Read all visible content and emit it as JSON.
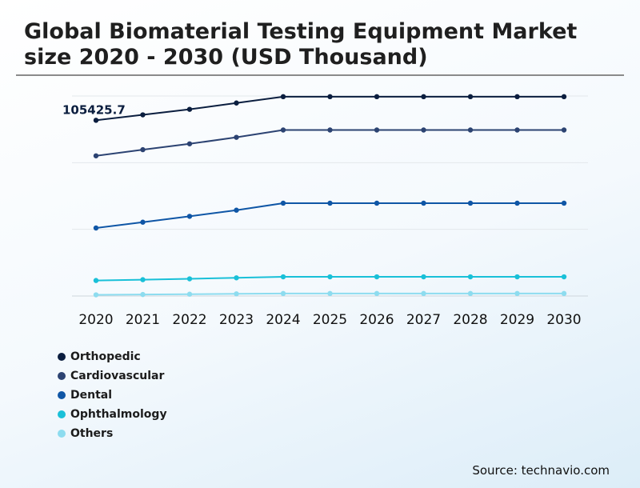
{
  "title": "Global Biomaterial Testing Equipment Market size 2020 - 2030 (USD Thousand)",
  "source": "Source: technavio.com",
  "chart_data": {
    "type": "line",
    "x": [
      "2020",
      "2021",
      "2022",
      "2023",
      "2024",
      "2025",
      "2026",
      "2027",
      "2028",
      "2029",
      "2030"
    ],
    "ylim": [
      0,
      120000
    ],
    "grid": true,
    "legend": "bottom-left",
    "annotation": "105425.7",
    "series": [
      {
        "name": "Orthopedic",
        "color": "#0b1e3f",
        "values": [
          105425.7,
          108700,
          112000,
          115800,
          119600,
          119600,
          119600,
          119600,
          119600,
          119600,
          119600
        ]
      },
      {
        "name": "Cardiovascular",
        "color": "#2c4372",
        "values": [
          84100,
          87800,
          91300,
          95200,
          99600,
          99600,
          99600,
          99600,
          99600,
          99600,
          99600
        ]
      },
      {
        "name": "Dental",
        "color": "#0f56a6",
        "values": [
          40800,
          44300,
          47800,
          51500,
          55700,
          55700,
          55700,
          55700,
          55700,
          55700,
          55700
        ]
      },
      {
        "name": "Ophthalmology",
        "color": "#19c0d8",
        "values": [
          9300,
          9800,
          10300,
          10900,
          11500,
          11500,
          11500,
          11500,
          11500,
          11500,
          11500
        ]
      },
      {
        "name": "Others",
        "color": "#8ddcef",
        "values": [
          700,
          900,
          1100,
          1300,
          1500,
          1500,
          1500,
          1500,
          1500,
          1500,
          1500
        ]
      }
    ]
  }
}
